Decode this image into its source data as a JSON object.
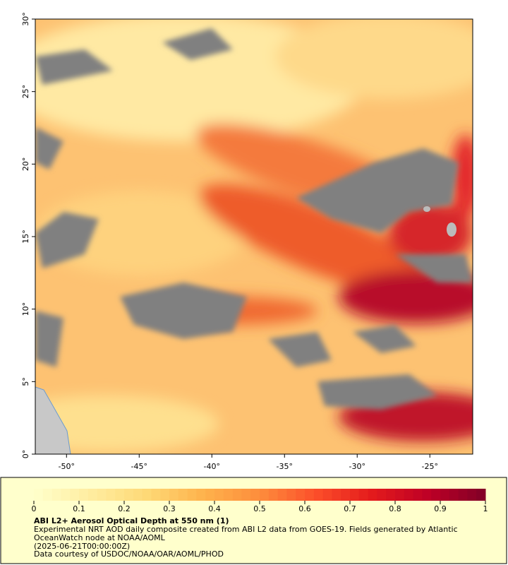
{
  "map": {
    "xlim": [
      -52.15,
      -22.05
    ],
    "ylim": [
      0,
      30
    ],
    "xticks": [
      {
        "value": -50,
        "label": "-50°"
      },
      {
        "value": -45,
        "label": "-45°"
      },
      {
        "value": -40,
        "label": "-40°"
      },
      {
        "value": -35,
        "label": "-35°"
      },
      {
        "value": -30,
        "label": "-30°"
      },
      {
        "value": -25,
        "label": "-25°"
      }
    ],
    "yticks": [
      {
        "value": 0,
        "label": "0°"
      },
      {
        "value": 5,
        "label": "5°"
      },
      {
        "value": 10,
        "label": "10°"
      },
      {
        "value": 15,
        "label": "15°"
      },
      {
        "value": 20,
        "label": "20°"
      },
      {
        "value": 25,
        "label": "25°"
      },
      {
        "value": 30,
        "label": "30°"
      }
    ]
  },
  "colorbar": {
    "lim": [
      0,
      1
    ],
    "ticks": [
      0,
      0.1,
      0.2,
      0.3,
      0.4,
      0.5,
      0.6,
      0.7,
      0.8,
      0.9,
      1
    ],
    "colors": [
      "#ffffcc",
      "#ffeda0",
      "#fed976",
      "#feb24c",
      "#fd8d3c",
      "#fc4e2a",
      "#e31a1c",
      "#bd0026",
      "#800026"
    ]
  },
  "caption": {
    "title": "ABI L2+ Aerosol Optical Depth at 550 nm (1)",
    "lines": [
      "Experimental NRT AOD daily composite created from ABI L2 data from GOES-19. Fields generated by Atlantic",
      "OceanWatch node at NOAA/AOML",
      "(2025-06-21T00:00:00Z)",
      "Data courtesy of USDOC/NOAA/OAR/AOML/PHOD"
    ]
  }
}
